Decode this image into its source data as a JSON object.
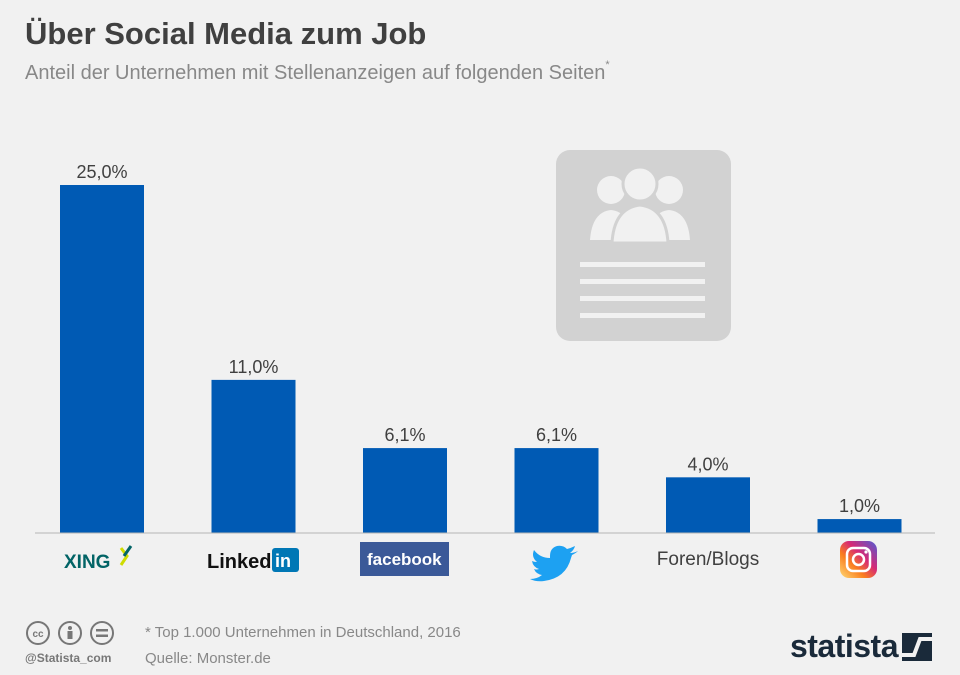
{
  "header": {
    "title": "Über Social Media zum Job",
    "subtitle": "Anteil der Unternehmen mit Stellenanzeigen auf folgenden Seiten",
    "subtitle_mark": "*"
  },
  "chart_data": {
    "type": "bar",
    "categories": [
      "XING",
      "LinkedIn",
      "facebook",
      "Twitter",
      "Foren/Blogs",
      "Instagram"
    ],
    "category_display": [
      "logo",
      "logo",
      "logo",
      "logo",
      "text",
      "logo"
    ],
    "values": [
      25.0,
      11.0,
      6.1,
      6.1,
      4.0,
      1.0
    ],
    "value_labels": [
      "25,0%",
      "11,0%",
      "6,1%",
      "6,1%",
      "4,0%",
      "1,0%"
    ],
    "ylim": [
      0,
      25
    ],
    "grid": false,
    "legend": "none",
    "bar_color": "#005ab4"
  },
  "logos": {
    "xing": "XING",
    "linkedin_word": "Linked",
    "linkedin_in": "in",
    "facebook": "facebook"
  },
  "footer": {
    "note": "* Top 1.000 Unternehmen in Deutschland, 2016",
    "source": "Quelle: Monster.de",
    "handle": "@Statista_com",
    "brand": "statista"
  },
  "colors": {
    "background": "#f1f1f1",
    "bar": "#005ab4",
    "text_dark": "#404040",
    "text_light": "#888888",
    "illustration": "#d2d2d2"
  }
}
